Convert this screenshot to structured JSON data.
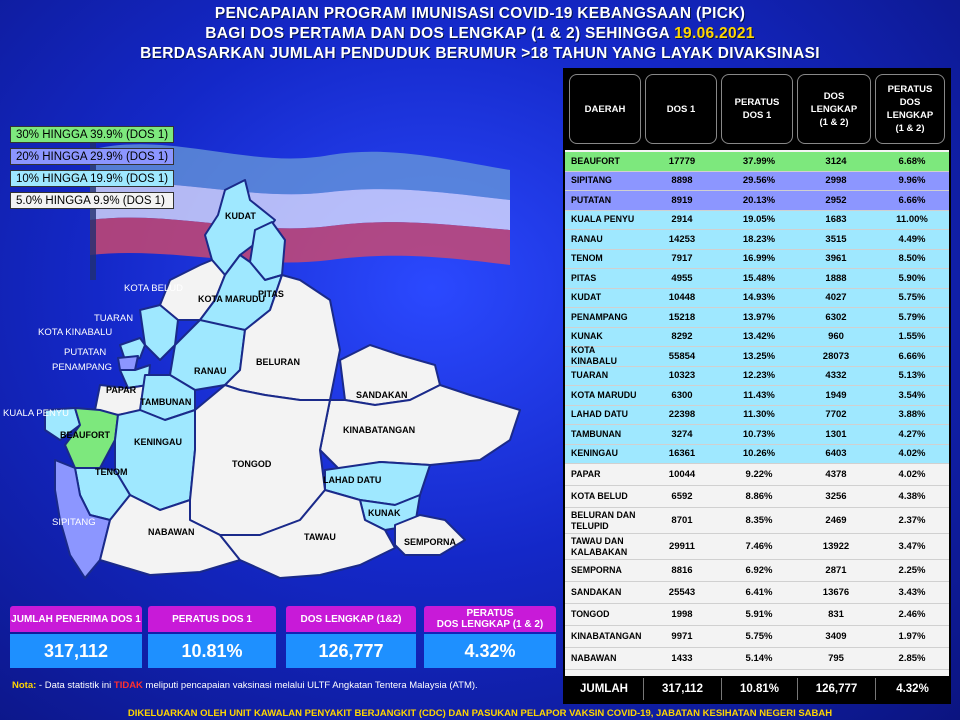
{
  "titles": {
    "line1": "PENCAPAIAN PROGRAM IMUNISASI COVID-19 KEBANGSAAN (PICK)",
    "line2_prefix": "BAGI DOS PERTAMA DAN DOS LENGKAP (1 & 2) SEHINGGA ",
    "line2_date": "19.06.2021",
    "line3": "BERDASARKAN JUMLAH PENDUDUK BERUMUR >18 TAHUN YANG LAYAK DIVAKSINASI"
  },
  "legend": [
    {
      "label": "30% HINGGA 39.9% (DOS 1)",
      "color": "#7de87d"
    },
    {
      "label": "20% HINGGA 29.9% (DOS 1)",
      "color": "#8c96ff"
    },
    {
      "label": "10% HINGGA 19.9% (DOS 1)",
      "color": "#9fe8ff"
    },
    {
      "label": "5.0% HINGGA 9.9% (DOS 1)",
      "color": "#f3f3f3"
    }
  ],
  "map_labels": {
    "kudat": "KUDAT",
    "pitas": "PITAS",
    "kota_belud": "KOTA BELUD",
    "kota_marudu": "KOTA MARUDU",
    "tuaran": "TUARAN",
    "kota_kinabalu": "KOTA KINABALU",
    "putatan": "PUTATAN",
    "penampang": "PENAMPANG",
    "papar": "PAPAR",
    "ranau": "RANAU",
    "beluran": "BELURAN",
    "kuala_penyu": "KUALA PENYU",
    "beaufort": "BEAUFORT",
    "tambunan": "TAMBUNAN",
    "sandakan": "SANDAKAN",
    "keningau": "KENINGAU",
    "kinabatangan": "KINABATANGAN",
    "tenom": "TENOM",
    "tongod": "TONGOD",
    "lahad_datu": "LAHAD DATU",
    "sipitang": "SIPITANG",
    "kunak": "KUNAK",
    "nabawan": "NABAWAN",
    "tawau": "TAWAU",
    "semporna": "SEMPORNA"
  },
  "table": {
    "headers": [
      "DAERAH",
      "DOS 1",
      "PERATUS\nDOS 1",
      "DOS\nLENGKAP\n(1 & 2)",
      "PERATUS\nDOS\nLENGKAP\n(1 & 2)"
    ],
    "rows": [
      [
        "BEAUFORT",
        "17779",
        "37.99%",
        "3124",
        "6.68%"
      ],
      [
        "SIPITANG",
        "8898",
        "29.56%",
        "2998",
        "9.96%"
      ],
      [
        "PUTATAN",
        "8919",
        "20.13%",
        "2952",
        "6.66%"
      ],
      [
        "KUALA PENYU",
        "2914",
        "19.05%",
        "1683",
        "11.00%"
      ],
      [
        "RANAU",
        "14253",
        "18.23%",
        "3515",
        "4.49%"
      ],
      [
        "TENOM",
        "7917",
        "16.99%",
        "3961",
        "8.50%"
      ],
      [
        "PITAS",
        "4955",
        "15.48%",
        "1888",
        "5.90%"
      ],
      [
        "KUDAT",
        "10448",
        "14.93%",
        "4027",
        "5.75%"
      ],
      [
        "PENAMPANG",
        "15218",
        "13.97%",
        "6302",
        "5.79%"
      ],
      [
        "KUNAK",
        "8292",
        "13.42%",
        "960",
        "1.55%"
      ],
      [
        "KOTA KINABALU",
        "55854",
        "13.25%",
        "28073",
        "6.66%"
      ],
      [
        "TUARAN",
        "10323",
        "12.23%",
        "4332",
        "5.13%"
      ],
      [
        "KOTA MARUDU",
        "6300",
        "11.43%",
        "1949",
        "3.54%"
      ],
      [
        "LAHAD DATU",
        "22398",
        "11.30%",
        "7702",
        "3.88%"
      ],
      [
        "TAMBUNAN",
        "3274",
        "10.73%",
        "1301",
        "4.27%"
      ],
      [
        "KENINGAU",
        "16361",
        "10.26%",
        "6403",
        "4.02%"
      ],
      [
        "PAPAR",
        "10044",
        "9.22%",
        "4378",
        "4.02%"
      ],
      [
        "KOTA BELUD",
        "6592",
        "8.86%",
        "3256",
        "4.38%"
      ],
      [
        "BELURAN DAN TELUPID",
        "8701",
        "8.35%",
        "2469",
        "2.37%"
      ],
      [
        "TAWAU DAN KALABAKAN",
        "29911",
        "7.46%",
        "13922",
        "3.47%"
      ],
      [
        "SEMPORNA",
        "8816",
        "6.92%",
        "2871",
        "2.25%"
      ],
      [
        "SANDAKAN",
        "25543",
        "6.41%",
        "13676",
        "3.43%"
      ],
      [
        "TONGOD",
        "1998",
        "5.91%",
        "831",
        "2.46%"
      ],
      [
        "KINABATANGAN",
        "9971",
        "5.75%",
        "3409",
        "1.97%"
      ],
      [
        "NABAWAN",
        "1433",
        "5.14%",
        "795",
        "2.85%"
      ]
    ],
    "total": [
      "JUMLAH",
      "317,112",
      "10.81%",
      "126,777",
      "4.32%"
    ]
  },
  "cards": [
    {
      "header": "JUMLAH PENERIMA DOS 1",
      "value": "317,112"
    },
    {
      "header": "PERATUS DOS 1",
      "value": "10.81%"
    },
    {
      "header": "DOS LENGKAP (1&2)",
      "value": "126,777"
    },
    {
      "header": "PERATUS\nDOS LENGKAP (1 & 2)",
      "value": "4.32%"
    }
  ],
  "note": {
    "key": "Nota:",
    "before": " - Data statistik ini ",
    "highlight": "TIDAK",
    "after": " meliputi pencapaian vaksinasi melalui ULTF Angkatan Tentera Malaysia (ATM)."
  },
  "footer": "DIKELUARKAN OLEH UNIT KAWALAN PENYAKIT BERJANGKIT (CDC) DAN PASUKAN PELAPOR VAKSIN COVID-19, JABATAN KESIHATAN NEGERI SABAH",
  "colors": {
    "band_30": "#7de87d",
    "band_20": "#8c96ff",
    "band_10": "#9fe8ff",
    "band_5": "#f3f3f3",
    "card_header": "#c81ad8",
    "card_value": "#1e90ff",
    "date": "#ffd600"
  },
  "chart_data": {
    "type": "table",
    "title": "PENCAPAIAN PROGRAM IMUNISASI COVID-19 KEBANGSAAN (PICK)",
    "columns": [
      "DAERAH",
      "DOS 1",
      "PERATUS DOS 1",
      "DOS LENGKAP (1 & 2)",
      "PERATUS DOS LENGKAP (1 & 2)"
    ],
    "categories": [
      "BEAUFORT",
      "SIPITANG",
      "PUTATAN",
      "KUALA PENYU",
      "RANAU",
      "TENOM",
      "PITAS",
      "KUDAT",
      "PENAMPANG",
      "KUNAK",
      "KOTA KINABALU",
      "TUARAN",
      "KOTA MARUDU",
      "LAHAD DATU",
      "TAMBUNAN",
      "KENINGAU",
      "PAPAR",
      "KOTA BELUD",
      "BELURAN DAN TELUPID",
      "TAWAU DAN KALABAKAN",
      "SEMPORNA",
      "SANDAKAN",
      "TONGOD",
      "KINABATANGAN",
      "NABAWAN"
    ],
    "series": [
      {
        "name": "DOS 1",
        "values": [
          17779,
          8898,
          8919,
          2914,
          14253,
          7917,
          4955,
          10448,
          15218,
          8292,
          55854,
          10323,
          6300,
          22398,
          3274,
          16361,
          10044,
          6592,
          8701,
          29911,
          8816,
          25543,
          1998,
          9971,
          1433
        ]
      },
      {
        "name": "PERATUS DOS 1",
        "values": [
          37.99,
          29.56,
          20.13,
          19.05,
          18.23,
          16.99,
          15.48,
          14.93,
          13.97,
          13.42,
          13.25,
          12.23,
          11.43,
          11.3,
          10.73,
          10.26,
          9.22,
          8.86,
          8.35,
          7.46,
          6.92,
          6.41,
          5.91,
          5.75,
          5.14
        ]
      },
      {
        "name": "DOS LENGKAP (1 & 2)",
        "values": [
          3124,
          2998,
          2952,
          1683,
          3515,
          3961,
          1888,
          4027,
          6302,
          960,
          28073,
          4332,
          1949,
          7702,
          1301,
          6403,
          4378,
          3256,
          2469,
          13922,
          2871,
          13676,
          831,
          3409,
          795
        ]
      },
      {
        "name": "PERATUS DOS LENGKAP (1 & 2)",
        "values": [
          6.68,
          9.96,
          6.66,
          11.0,
          4.49,
          8.5,
          5.9,
          5.75,
          5.79,
          1.55,
          6.66,
          5.13,
          3.54,
          3.88,
          4.27,
          4.02,
          4.02,
          4.38,
          2.37,
          3.47,
          2.25,
          3.43,
          2.46,
          1.97,
          2.85
        ]
      }
    ],
    "totals": {
      "DOS 1": 317112,
      "PERATUS DOS 1": 10.81,
      "DOS LENGKAP (1 & 2)": 126777,
      "PERATUS DOS LENGKAP (1 & 2)": 4.32
    }
  }
}
